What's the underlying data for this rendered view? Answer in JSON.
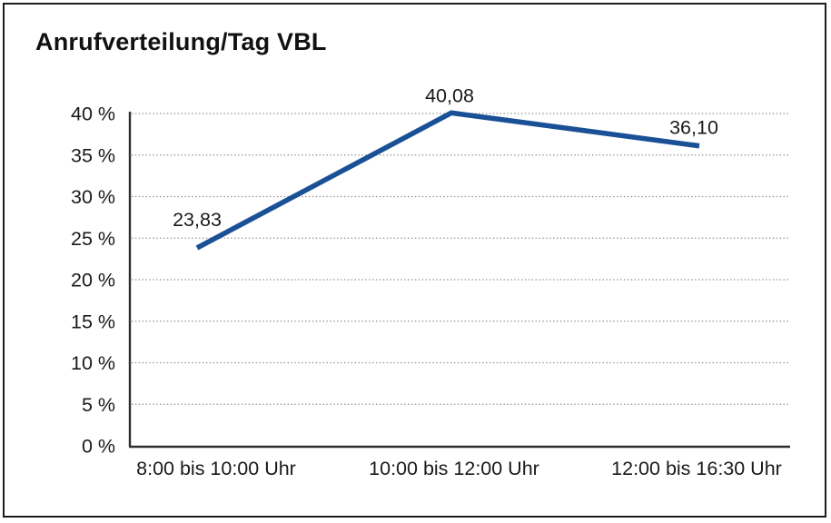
{
  "title": "Anrufverteilung/Tag VBL",
  "chart_data": {
    "type": "line",
    "title": "Anrufverteilung/Tag VBL",
    "categories": [
      "8:00 bis 10:00 Uhr",
      "10:00 bis 12:00 Uhr",
      "12:00 bis 16:30 Uhr"
    ],
    "values": [
      23.83,
      40.08,
      36.1
    ],
    "point_labels": [
      "23,83",
      "40,08",
      "36,10"
    ],
    "xlabel": "",
    "ylabel": "",
    "ylim": [
      0,
      40
    ],
    "ytick_step": 5,
    "ytick_labels": [
      "0 %",
      "5 %",
      "10 %",
      "15 %",
      "20 %",
      "25 %",
      "30 %",
      "35 %",
      "40 %"
    ],
    "grid": "horizontal-dotted",
    "legend_position": "none",
    "line_color": "#1a5196",
    "axis_color": "#2e2e2e",
    "grid_color": "#868686",
    "text_color": "#1a1a1a",
    "frame_color": "#1c1c1c",
    "background": "#ffffff"
  }
}
